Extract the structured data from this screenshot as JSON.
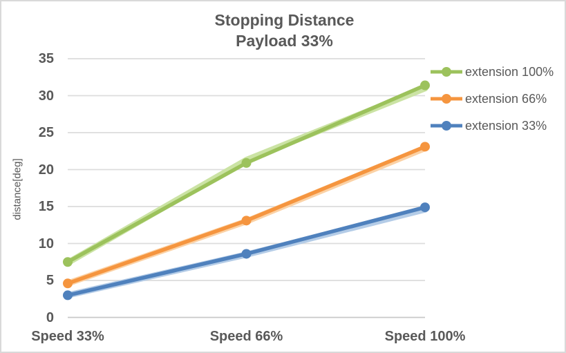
{
  "chart": {
    "title_line1": "Stopping Distance",
    "title_line2": "Payload 33%",
    "y_axis_title": "distance[deg]"
  },
  "chart_data": {
    "type": "line",
    "title": "Stopping Distance",
    "subtitle": "Payload 33%",
    "categories": [
      "Speed 33%",
      "Speed 66%",
      "Speed 100%"
    ],
    "series": [
      {
        "name": "extension 100%",
        "values": [
          7.5,
          20.9,
          31.4
        ],
        "color": "#9CC25C",
        "band_values": [
          7.4,
          21.3,
          31.0
        ],
        "band_color": "#CBE3A4"
      },
      {
        "name": "extension 66%",
        "values": [
          4.6,
          13.1,
          23.1
        ],
        "color": "#F5953F",
        "band_values": [
          4.6,
          13.0,
          22.9
        ],
        "band_color": "#FBD2A6"
      },
      {
        "name": "extension 33%",
        "values": [
          3.0,
          8.6,
          14.9
        ],
        "color": "#4F81BD",
        "band_values": [
          3.0,
          8.5,
          14.6
        ],
        "band_color": "#B4CCE7"
      }
    ],
    "xlabel": "",
    "ylabel": "distance[deg]",
    "ylim": [
      0,
      35
    ],
    "yticks": [
      0,
      5,
      10,
      15,
      20,
      25,
      30,
      35
    ],
    "grid": true,
    "legend_position": "right",
    "marker": "circle"
  },
  "colors": {
    "text": "#595959",
    "gridline": "#DCDCDC",
    "axis_line": "#C8C8C8",
    "border": "#D9D9D9",
    "background": "#FFFFFF"
  }
}
